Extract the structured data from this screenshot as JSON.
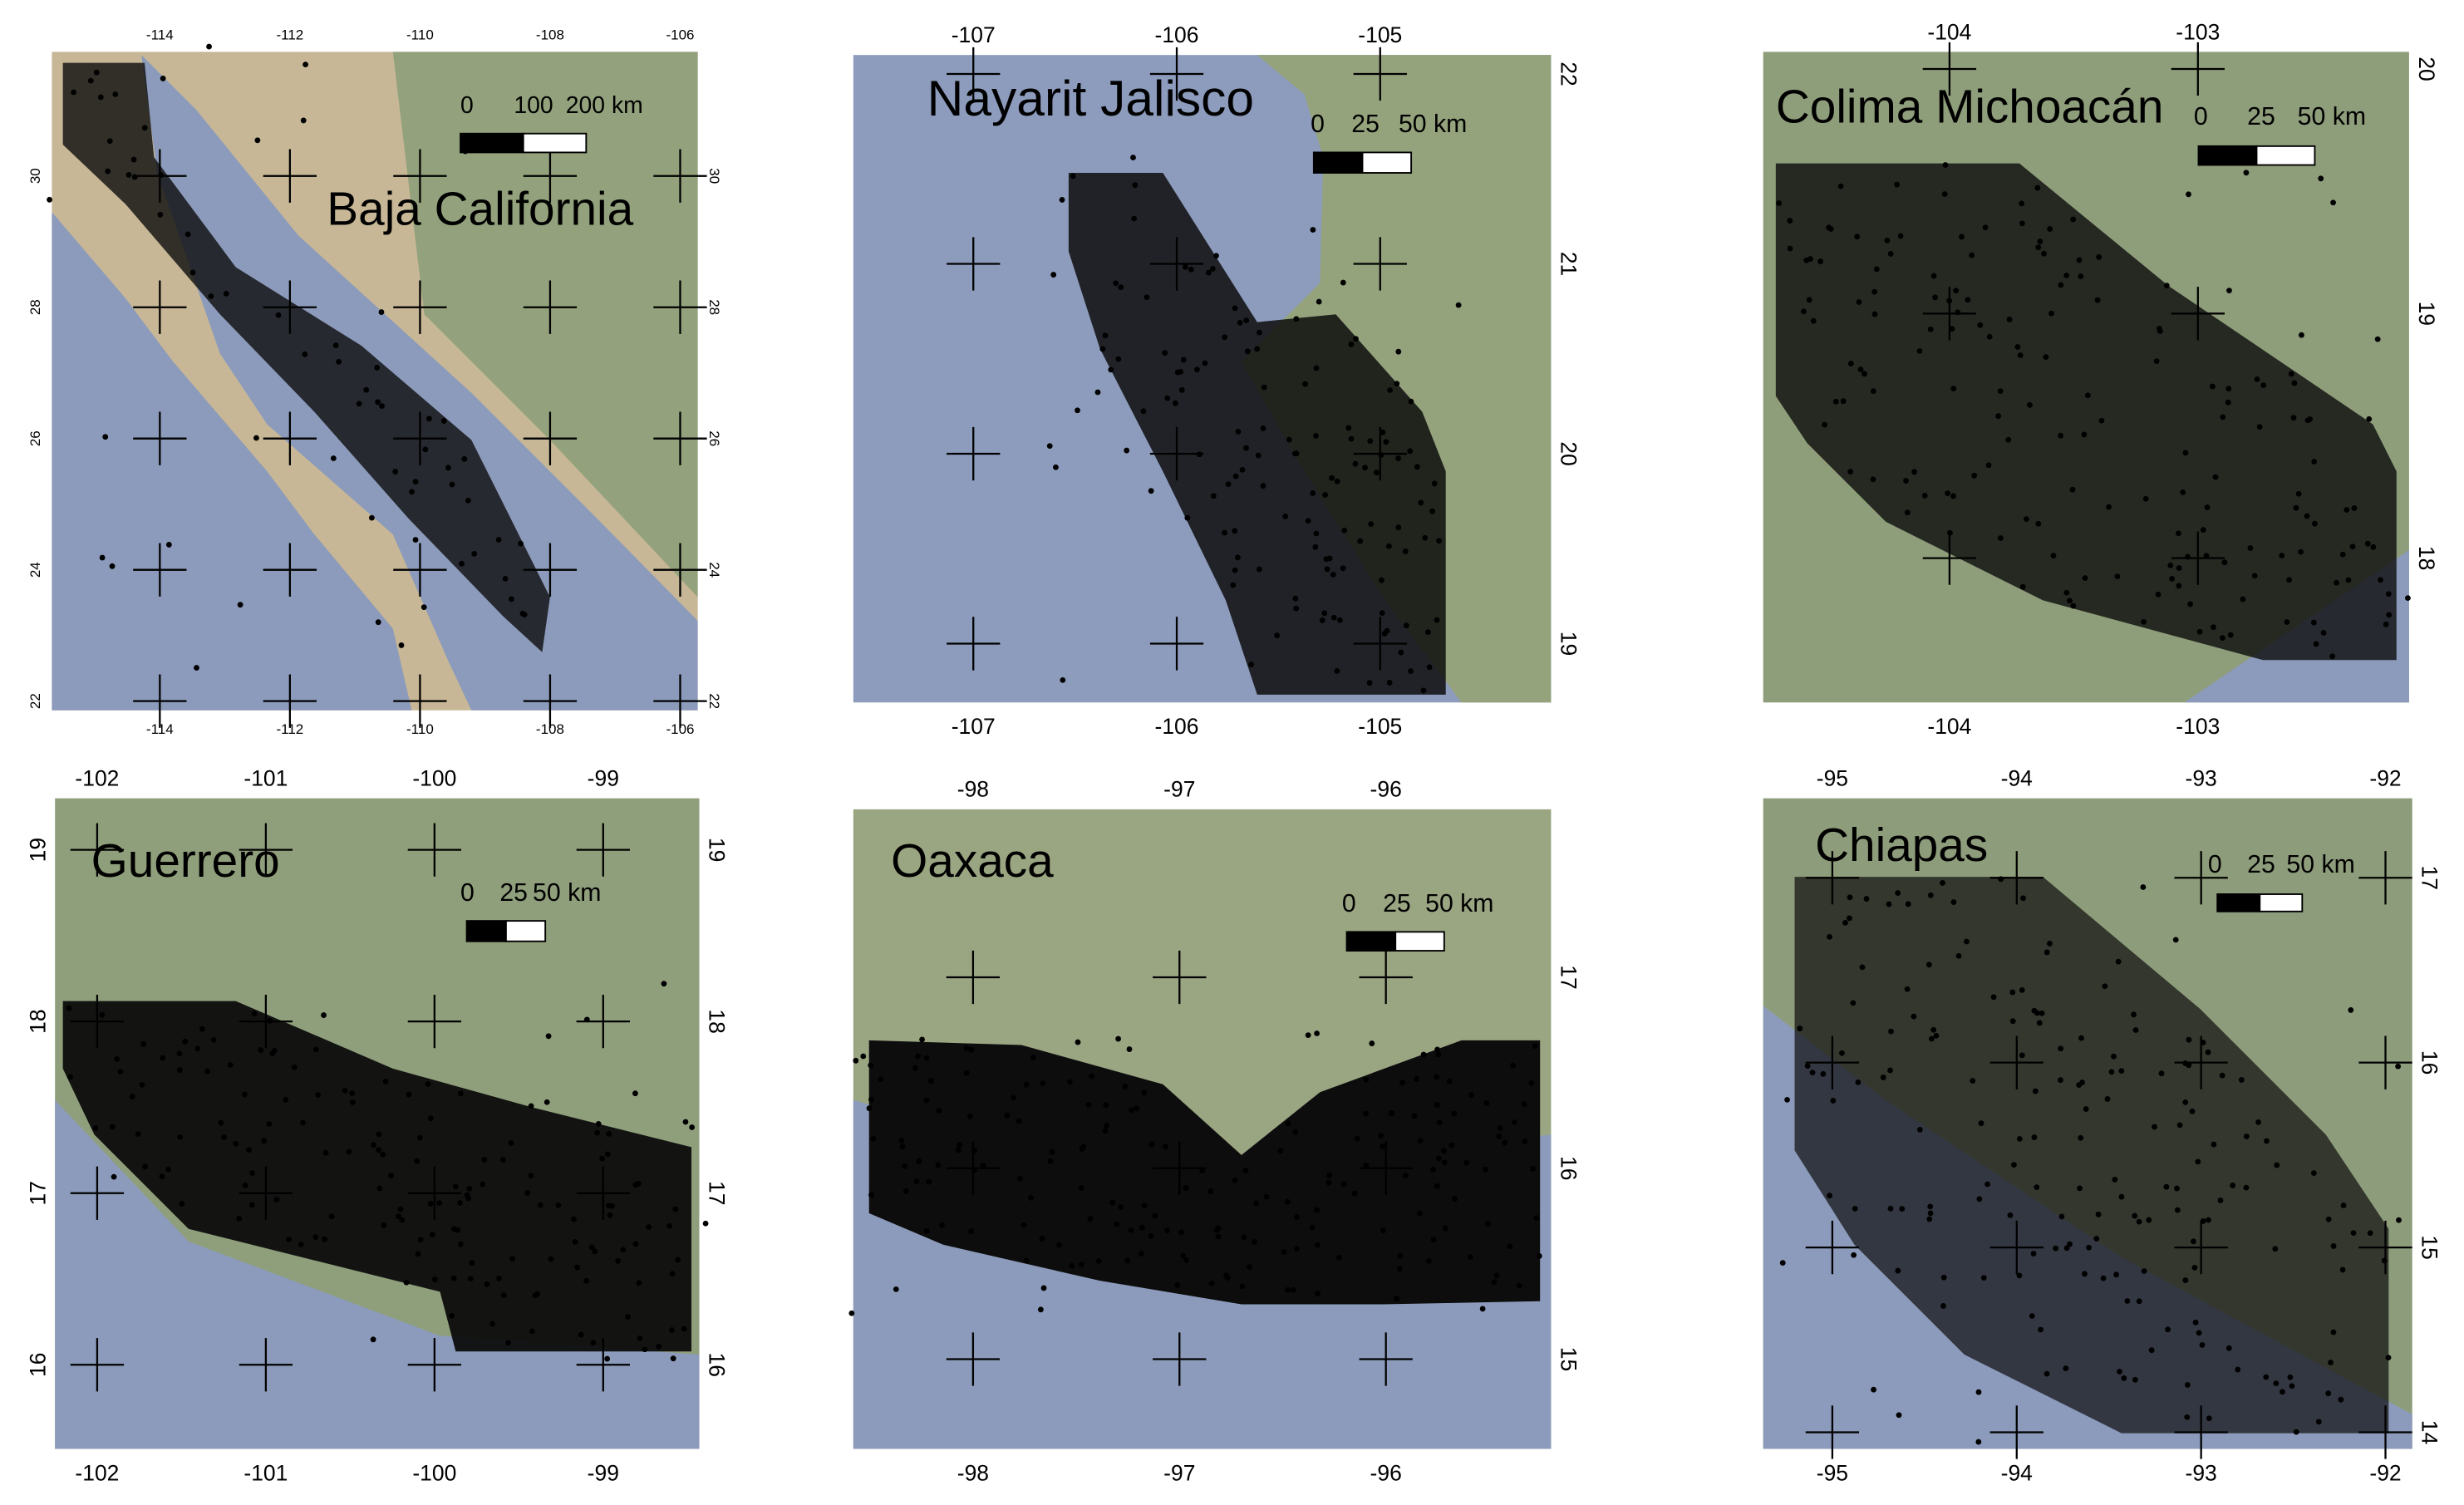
{
  "panels": [
    {
      "title": "Baja California",
      "xticks": [
        -114,
        -112,
        -110,
        -108,
        -106
      ],
      "yticks": [
        30,
        28,
        26,
        24,
        22
      ],
      "xlim": [
        -115.66,
        -105.73
      ],
      "ylim": [
        21.86,
        31.89
      ],
      "y_label_sides": [
        "left",
        "right"
      ],
      "scale_labels": [
        "0",
        "100",
        "200 km"
      ]
    },
    {
      "title": "Nayarit Jalisco",
      "xticks": [
        -107,
        -106,
        -105
      ],
      "yticks": [
        22,
        21,
        20,
        19
      ],
      "xlim": [
        -107.59,
        -104.16
      ],
      "ylim": [
        18.69,
        22.1
      ],
      "y_label_sides": [
        "right"
      ],
      "scale_labels": [
        "0",
        "25",
        "50 km"
      ]
    },
    {
      "title": "Colima Michoacán",
      "xticks": [
        -104,
        -103
      ],
      "yticks": [
        20,
        19,
        18
      ],
      "xlim": [
        -104.75,
        -102.15
      ],
      "ylim": [
        17.41,
        20.07
      ],
      "y_label_sides": [
        "right"
      ],
      "scale_labels": [
        "0",
        "25",
        "50 km"
      ]
    },
    {
      "title": "Guerrero",
      "xticks": [
        -102,
        -101,
        -100,
        -99
      ],
      "yticks": [
        19,
        18,
        17,
        16
      ],
      "xlim": [
        -102.25,
        -98.43
      ],
      "ylim": [
        15.51,
        19.3
      ],
      "y_label_sides": [
        "left",
        "right"
      ],
      "scale_labels": [
        "0",
        "25",
        "50 km"
      ]
    },
    {
      "title": "Oaxaca",
      "xticks": [
        -98,
        -97,
        -96
      ],
      "yticks": [
        17,
        16,
        15
      ],
      "xlim": [
        -98.58,
        -95.2
      ],
      "ylim": [
        14.53,
        17.88
      ],
      "y_label_sides": [
        "right"
      ],
      "scale_labels": [
        "0",
        "25",
        "50 km"
      ]
    },
    {
      "title": "Chiapas",
      "xticks": [
        -95,
        -94,
        -93,
        -92
      ],
      "yticks": [
        17,
        16,
        15,
        14
      ],
      "xlim": [
        -95.375,
        -91.855
      ],
      "ylim": [
        13.91,
        17.43
      ],
      "y_label_sides": [
        "right"
      ],
      "scale_labels": [
        "0",
        "25",
        "50 km"
      ]
    }
  ]
}
